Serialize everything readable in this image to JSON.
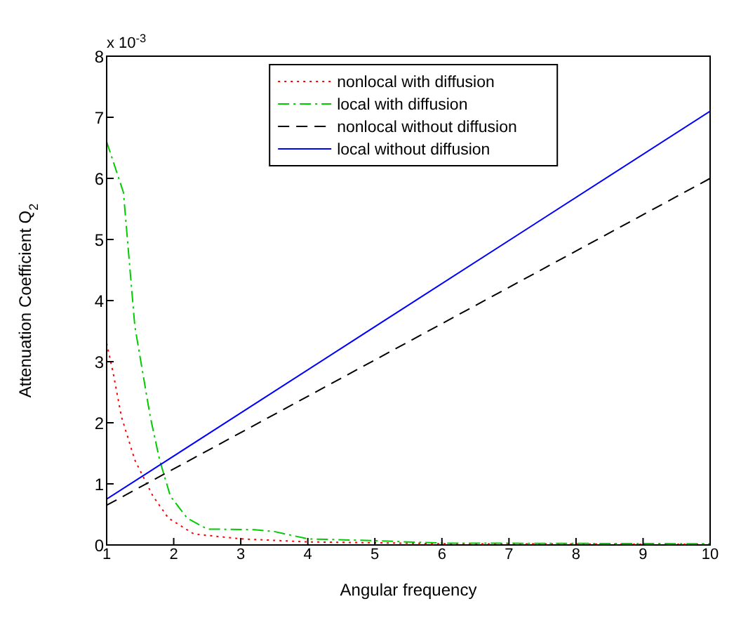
{
  "chart_data": {
    "type": "line",
    "xlabel": "Angular frequency",
    "ylabel": "Attenuation Coefficient Q$_{2}$",
    "annotations": [
      "x 10$^{-3}$"
    ],
    "xlim": [
      1,
      10
    ],
    "ylim": [
      0,
      8
    ],
    "xticks": [
      1,
      2,
      3,
      4,
      5,
      6,
      7,
      8,
      9,
      10
    ],
    "yticks": [
      0,
      1,
      2,
      3,
      4,
      5,
      6,
      7,
      8
    ],
    "legend": "top",
    "marker": "none",
    "series": [
      {
        "name": "nonlocal with diffusion",
        "color": "#ff0000",
        "line_style": "dotted",
        "x": [
          1,
          1.1,
          1.22,
          1.42,
          1.69,
          1.92,
          2.3,
          3,
          4,
          6,
          10
        ],
        "values": [
          3.3,
          2.8,
          2.1,
          1.39,
          0.8,
          0.44,
          0.18,
          0.1,
          0.05,
          0.02,
          0.01
        ]
      },
      {
        "name": "local with diffusion",
        "color": "#00cc00",
        "line_style": "dashdot",
        "x": [
          1,
          1.25,
          1.42,
          1.65,
          1.79,
          1.95,
          2.2,
          2.5,
          3.2,
          3.5,
          4,
          5,
          6,
          10
        ],
        "values": [
          6.6,
          5.77,
          3.58,
          2.1,
          1.39,
          0.8,
          0.44,
          0.26,
          0.25,
          0.22,
          0.1,
          0.07,
          0.03,
          0.02
        ]
      },
      {
        "name": "nonlocal without diffusion",
        "color": "#000000",
        "line_style": "dashed",
        "x": [
          1,
          10
        ],
        "values": [
          0.65,
          6.0
        ]
      },
      {
        "name": "local without diffusion",
        "color": "#0000ff",
        "line_style": "solid",
        "x": [
          1,
          10
        ],
        "values": [
          0.75,
          7.1
        ]
      }
    ]
  }
}
